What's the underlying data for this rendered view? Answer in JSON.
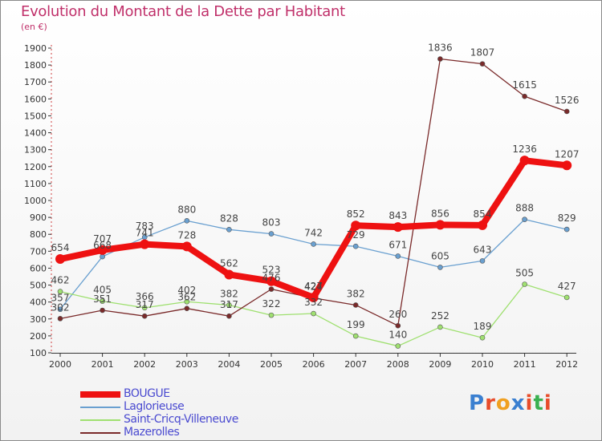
{
  "title": "Evolution du Montant de la Dette par Habitant",
  "subtitle": "(en €)",
  "logo": {
    "text": "Proxiti",
    "colors": [
      "#3a7fd0",
      "#e84c2a",
      "#f0a020",
      "#3a7fd0",
      "#e84c2a",
      "#3ab050",
      "#e84c2a"
    ]
  },
  "chart_data": {
    "type": "line",
    "categories": [
      "2000",
      "2001",
      "2002",
      "2003",
      "2004",
      "2005",
      "2006",
      "2007",
      "2008",
      "2009",
      "2010",
      "2011",
      "2012"
    ],
    "y_ticks": [
      100,
      200,
      300,
      400,
      500,
      600,
      700,
      800,
      900,
      1000,
      1100,
      1200,
      1300,
      1400,
      1500,
      1600,
      1700,
      1800,
      1900
    ],
    "ylim": [
      100,
      1900
    ],
    "grid": false,
    "legend_position": "bottom-left",
    "series": [
      {
        "name": "BOUGUE",
        "color": "#ee1111",
        "values": [
          654,
          707,
          741,
          728,
          562,
          523,
          427,
          852,
          843,
          856,
          854,
          1236,
          1207
        ]
      },
      {
        "name": "Laglorieuse",
        "color": "#6aa0d0",
        "values": [
          357,
          668,
          783,
          880,
          828,
          803,
          742,
          729,
          671,
          605,
          643,
          888,
          829
        ]
      },
      {
        "name": "Saint-Cricq-Villeneuve",
        "color": "#9fe070",
        "values": [
          462,
          405,
          366,
          402,
          382,
          322,
          332,
          199,
          140,
          252,
          189,
          505,
          427
        ]
      },
      {
        "name": "Mazerolles",
        "color": "#7a2a2a",
        "values": [
          302,
          351,
          317,
          362,
          317,
          476,
          424,
          382,
          260,
          1836,
          1807,
          1615,
          1526
        ]
      }
    ]
  }
}
